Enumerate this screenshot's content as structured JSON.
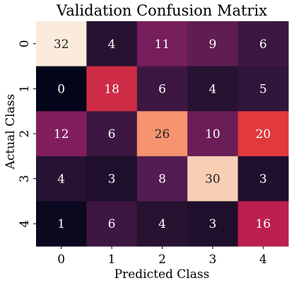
{
  "chart_data": {
    "type": "heatmap",
    "title": "Validation Confusion Matrix",
    "xlabel": "Predicted Class",
    "ylabel": "Actual Class",
    "x_categories": [
      "0",
      "1",
      "2",
      "3",
      "4"
    ],
    "y_categories": [
      "0",
      "1",
      "2",
      "3",
      "4"
    ],
    "values": [
      [
        32,
        4,
        11,
        9,
        6
      ],
      [
        0,
        18,
        6,
        4,
        5
      ],
      [
        12,
        6,
        26,
        10,
        20
      ],
      [
        4,
        3,
        8,
        30,
        3
      ],
      [
        1,
        6,
        4,
        3,
        16
      ]
    ],
    "value_range": [
      0,
      32
    ],
    "colormap": "rocket",
    "annotated": true,
    "grid": false,
    "colorbar": false
  }
}
